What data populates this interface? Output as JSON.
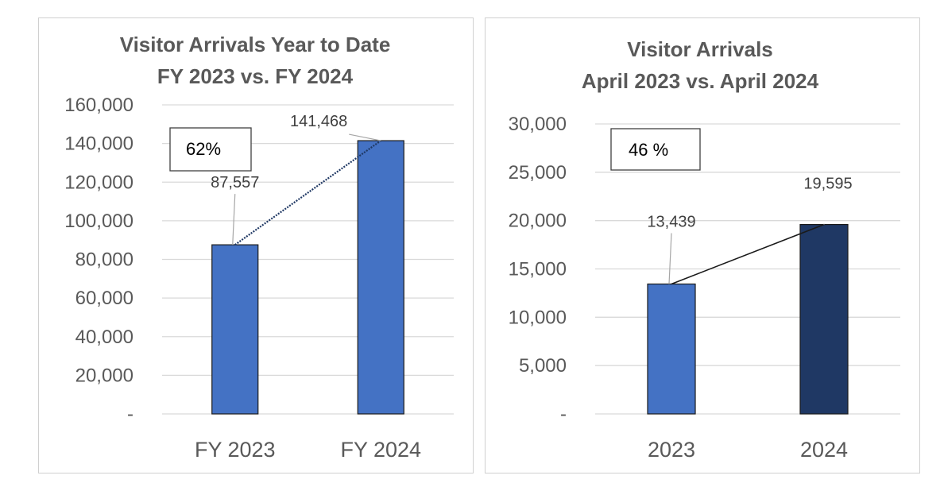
{
  "chart_data": [
    {
      "type": "bar",
      "title": [
        "Visitor Arrivals Year to Date",
        "FY 2023 vs. FY 2024"
      ],
      "categories": [
        "FY 2023",
        "FY 2024"
      ],
      "values": [
        87557,
        141468
      ],
      "value_labels": [
        "87,557",
        "141,468"
      ],
      "bar_colors": [
        "#4472c4",
        "#4472c4"
      ],
      "ylim": [
        0,
        160000
      ],
      "yticks": [
        0,
        20000,
        40000,
        60000,
        80000,
        100000,
        120000,
        140000,
        160000
      ],
      "ytick_labels": [
        "-",
        "20,000",
        "40,000",
        "60,000",
        "80,000",
        "100,000",
        "120,000",
        "140,000",
        "160,000"
      ],
      "grid": true,
      "trend_line": "dotted",
      "annotation": "62%"
    },
    {
      "type": "bar",
      "title": [
        "Visitor Arrivals",
        "April 2023 vs. April 2024"
      ],
      "categories": [
        "2023",
        "2024"
      ],
      "values": [
        13439,
        19595
      ],
      "value_labels": [
        "13,439",
        "19,595"
      ],
      "bar_colors": [
        "#4472c4",
        "#1f3864"
      ],
      "ylim": [
        0,
        30000
      ],
      "yticks": [
        0,
        5000,
        10000,
        15000,
        20000,
        25000,
        30000
      ],
      "ytick_labels": [
        "-",
        "5,000",
        "10,000",
        "15,000",
        "20,000",
        "25,000",
        "30,000"
      ],
      "grid": true,
      "trend_line": "solid",
      "annotation": "46 %"
    }
  ]
}
